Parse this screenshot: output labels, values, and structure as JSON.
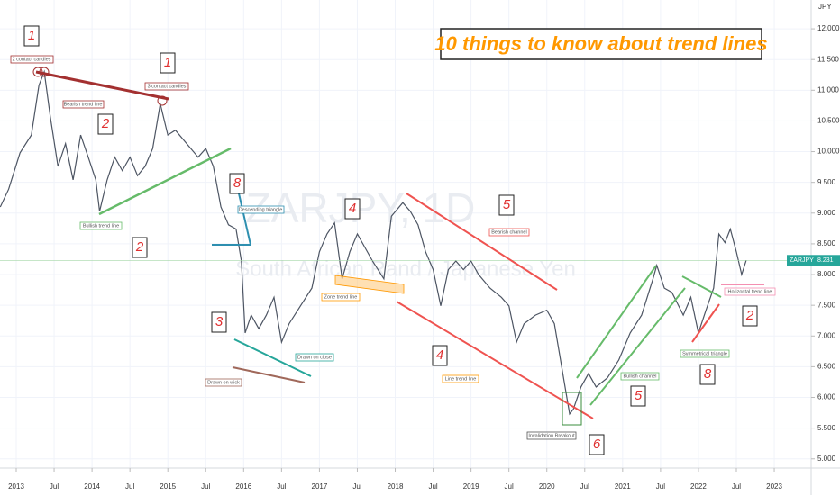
{
  "chart_data": {
    "type": "line",
    "title": "10 things to know about trend lines",
    "y_unit": "JPY",
    "watermark": "ZARJPY, 1D",
    "watermark_subtitle": "South African Rand / Japanese Yen",
    "color": "#4d5563",
    "grid": true,
    "xlim": [
      2012.786,
      2023.487
    ],
    "ylim": [
      4.85,
      12.47
    ],
    "xticks": [
      2013,
      {
        "value": 2013.5,
        "label": "Jul"
      },
      2014,
      {
        "value": 2014.5,
        "label": "Jul"
      },
      2015,
      {
        "value": 2015.5,
        "label": "Jul"
      },
      2016,
      {
        "value": 2016.5,
        "label": "Jul"
      },
      2017,
      {
        "value": 2017.5,
        "label": "Jul"
      },
      2018,
      {
        "value": 2018.5,
        "label": "Jul"
      },
      2019,
      {
        "value": 2019.5,
        "label": "Jul"
      },
      2020,
      {
        "value": 2020.5,
        "label": "Jul"
      },
      2021,
      {
        "value": 2021.5,
        "label": "Jul"
      },
      2022,
      {
        "value": 2022.5,
        "label": "Jul"
      },
      2023
    ],
    "yticks": [
      {
        "value": 5,
        "label": "5.000"
      },
      {
        "value": 5.5,
        "label": "5.500"
      },
      {
        "value": 6,
        "label": "6.000"
      },
      {
        "value": 6.5,
        "label": "6.500"
      },
      {
        "value": 7,
        "label": "7.000"
      },
      {
        "value": 7.5,
        "label": "7.500"
      },
      {
        "value": 8,
        "label": "8.000"
      },
      {
        "value": 8.5,
        "label": "8.500"
      },
      {
        "value": 9,
        "label": "9.000"
      },
      {
        "value": 9.5,
        "label": "9.500"
      },
      {
        "value": 10,
        "label": "10.000"
      },
      {
        "value": 10.5,
        "label": "10.500"
      },
      {
        "value": 11,
        "label": "11.000"
      },
      {
        "value": 11.5,
        "label": "11.500"
      },
      {
        "value": 12,
        "label": "12.000"
      }
    ],
    "x": [
      2012.79,
      2012.9,
      2013.05,
      2013.2,
      2013.3,
      2013.37,
      2013.45,
      2013.55,
      2013.65,
      2013.75,
      2013.85,
      2013.95,
      2014.05,
      2014.1,
      2014.2,
      2014.3,
      2014.4,
      2014.5,
      2014.6,
      2014.7,
      2014.8,
      2014.9,
      2015.0,
      2015.1,
      2015.25,
      2015.4,
      2015.5,
      2015.6,
      2015.7,
      2015.8,
      2015.9,
      2015.97,
      2016.02,
      2016.1,
      2016.2,
      2016.3,
      2016.4,
      2016.5,
      2016.6,
      2016.75,
      2016.9,
      2017.0,
      2017.1,
      2017.2,
      2017.3,
      2017.4,
      2017.5,
      2017.6,
      2017.7,
      2017.85,
      2017.95,
      2018.1,
      2018.2,
      2018.3,
      2018.4,
      2018.5,
      2018.6,
      2018.7,
      2018.8,
      2018.9,
      2019.0,
      2019.1,
      2019.25,
      2019.4,
      2019.5,
      2019.6,
      2019.7,
      2019.85,
      2020.0,
      2020.1,
      2020.2,
      2020.3,
      2020.35,
      2020.45,
      2020.55,
      2020.65,
      2020.8,
      2020.95,
      2021.1,
      2021.25,
      2021.4,
      2021.45,
      2021.55,
      2021.65,
      2021.8,
      2021.9,
      2022.0,
      2022.1,
      2022.2,
      2022.27,
      2022.35,
      2022.42,
      2022.5,
      2022.57,
      2022.63
    ],
    "values": [
      9.1,
      9.39,
      9.98,
      10.27,
      11.08,
      11.3,
      10.57,
      9.76,
      10.13,
      9.54,
      10.27,
      9.91,
      9.54,
      9.03,
      9.54,
      9.91,
      9.69,
      9.91,
      9.61,
      9.76,
      10.05,
      10.78,
      10.27,
      10.35,
      10.13,
      9.91,
      10.05,
      9.76,
      9.1,
      8.81,
      8.74,
      8.22,
      7.05,
      7.34,
      7.12,
      7.34,
      7.63,
      6.9,
      7.2,
      7.49,
      7.78,
      8.37,
      8.66,
      8.84,
      7.93,
      8.37,
      8.66,
      8.44,
      8.22,
      7.93,
      8.95,
      9.17,
      9.03,
      8.81,
      8.37,
      8.08,
      7.49,
      8.08,
      8.22,
      8.08,
      8.22,
      8.0,
      7.78,
      7.63,
      7.49,
      6.9,
      7.2,
      7.34,
      7.42,
      7.2,
      6.47,
      5.73,
      5.81,
      6.17,
      6.39,
      6.17,
      6.32,
      6.61,
      7.05,
      7.34,
      7.93,
      8.15,
      7.78,
      7.71,
      7.34,
      7.63,
      7.05,
      7.42,
      7.78,
      8.66,
      8.52,
      8.74,
      8.37,
      8.0,
      8.231
    ],
    "last_symbol": "ZARJPY",
    "last_value": 8.231,
    "annotations": [
      "1",
      "2 contact candles",
      "Bearish trend line",
      "2",
      "1",
      "3 contact candles",
      "8",
      "Descending triangle",
      "Bullish trend line",
      "2",
      "4",
      "5",
      "Bearish channel",
      "Zone trend line",
      "3",
      "Drawn on close",
      "Drawn on wick",
      "4",
      "Line trend line",
      "Invalidation Breakout",
      "6",
      "Bullish channel",
      "5",
      "Symmetrical triangle",
      "8",
      "2",
      "Horizontal trend line"
    ]
  }
}
